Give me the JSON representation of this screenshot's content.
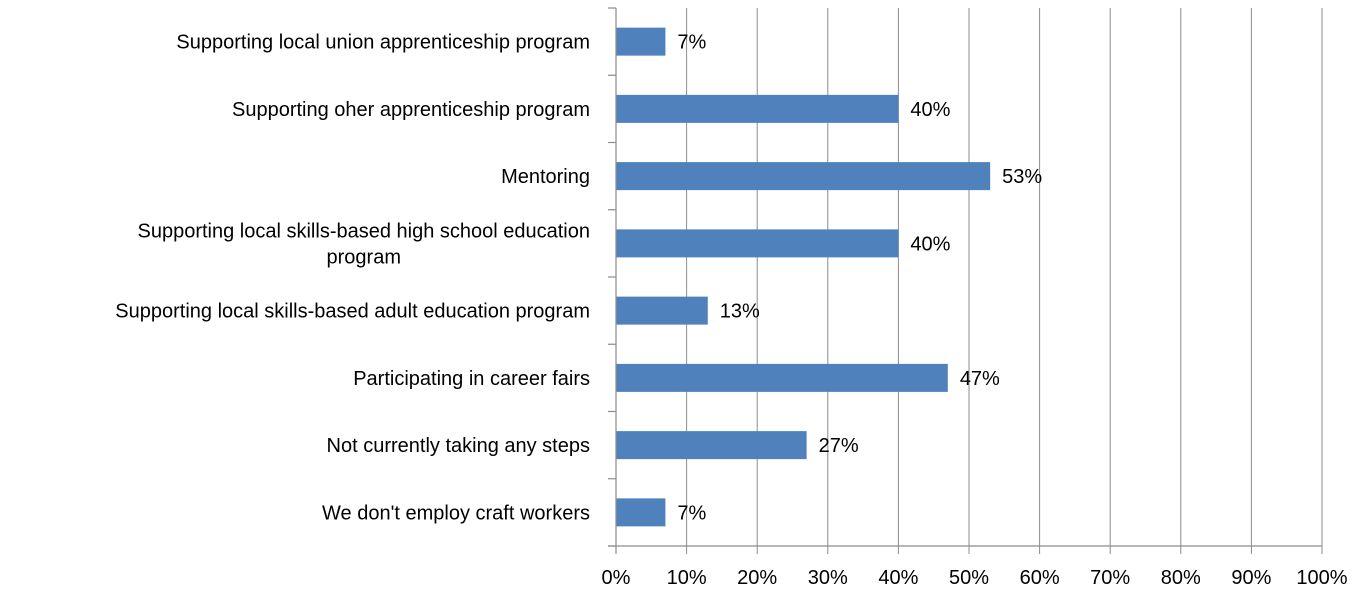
{
  "chart_data": {
    "type": "bar",
    "orientation": "horizontal",
    "title": "",
    "xlabel": "",
    "ylabel": "",
    "categories": [
      [
        "Supporting local union apprenticeship program"
      ],
      [
        "Supporting oher apprenticeship program"
      ],
      [
        "Mentoring"
      ],
      [
        "Supporting local skills-based high school education",
        "program"
      ],
      [
        "Supporting local skills-based adult education program"
      ],
      [
        "Participating in career fairs"
      ],
      [
        "Not currently taking any steps"
      ],
      [
        "We don't employ craft workers"
      ]
    ],
    "values": [
      7,
      40,
      53,
      40,
      13,
      47,
      27,
      7
    ],
    "data_labels": [
      "7%",
      "40%",
      "53%",
      "40%",
      "13%",
      "47%",
      "27%",
      "7%"
    ],
    "xlim": [
      0,
      100
    ],
    "x_ticks": [
      0,
      10,
      20,
      30,
      40,
      50,
      60,
      70,
      80,
      90,
      100
    ],
    "x_tick_labels": [
      "0%",
      "10%",
      "20%",
      "30%",
      "40%",
      "50%",
      "60%",
      "70%",
      "80%",
      "90%",
      "100%"
    ],
    "grid": true,
    "legend": "none",
    "colors": {
      "bar": "#4f81bd",
      "grid": "#8c8c8c",
      "text": "#000000"
    }
  }
}
